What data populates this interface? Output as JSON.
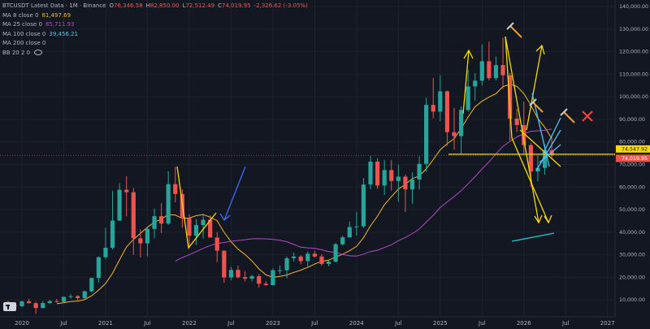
{
  "chart_data": {
    "type": "candlestick",
    "title": "BTCUSDT Latest Data · 1M · Binance",
    "ohlc_header": [
      {
        "label": "O",
        "text": "76,346.58"
      },
      {
        "label": "H",
        "text": "82,850.00"
      },
      {
        "label": "L",
        "text": "72,512.49"
      },
      {
        "label": "C",
        "text": "74,019.95"
      }
    ],
    "change": "-2,326.62 (-3.05%)",
    "indicators": [
      {
        "name": "MA 8 close 0",
        "value_label": "81,497.69",
        "color": "#f5b82e",
        "period": 8
      },
      {
        "name": "MA 25 close 0",
        "value_label": "85,711.93",
        "color": "#b04bc7",
        "period": 25
      },
      {
        "name": "MA 100 close 0",
        "value_label": "39,456.21",
        "color": "#4dd0e1",
        "period": 100
      },
      {
        "name": "MA 200 close 0",
        "color": "#d1d4dc",
        "period": 200
      },
      {
        "name": "BB 20 2 0",
        "color": "#d1d4dc"
      }
    ],
    "x": [
      "2019-11",
      "2019-12",
      "2020-01",
      "2020-02",
      "2020-03",
      "2020-04",
      "2020-05",
      "2020-06",
      "2020-07",
      "2020-08",
      "2020-09",
      "2020-10",
      "2020-11",
      "2020-12",
      "2021-01",
      "2021-02",
      "2021-03",
      "2021-04",
      "2021-05",
      "2021-06",
      "2021-07",
      "2021-08",
      "2021-09",
      "2021-10",
      "2021-11",
      "2021-12",
      "2022-01",
      "2022-02",
      "2022-03",
      "2022-04",
      "2022-05",
      "2022-06",
      "2022-07",
      "2022-08",
      "2022-09",
      "2022-10",
      "2022-11",
      "2022-12",
      "2023-01",
      "2023-02",
      "2023-03",
      "2023-04",
      "2023-05",
      "2023-06",
      "2023-07",
      "2023-08",
      "2023-09",
      "2023-10",
      "2023-11",
      "2023-12",
      "2024-01",
      "2024-02",
      "2024-03",
      "2024-04",
      "2024-05",
      "2024-06",
      "2024-07",
      "2024-08",
      "2024-09",
      "2024-10",
      "2024-11",
      "2024-12",
      "2025-01",
      "2025-02",
      "2025-03",
      "2025-04",
      "2025-05",
      "2025-06",
      "2025-07",
      "2025-08",
      "2025-09",
      "2025-10",
      "2025-11",
      "2025-12",
      "2026-01",
      "2026-02",
      "2026-03",
      "2026-04",
      "2026-05"
    ],
    "open": [
      9140,
      7540,
      7190,
      9350,
      8540,
      6410,
      8620,
      9450,
      9140,
      11350,
      11650,
      10780,
      13800,
      19700,
      28920,
      33110,
      45140,
      58800,
      57700,
      37300,
      35040,
      41460,
      47100,
      43820,
      61300,
      56950,
      46210,
      38470,
      43160,
      45510,
      37630,
      31800,
      19940,
      23290,
      20050,
      19420,
      20490,
      17160,
      16540,
      23130,
      23140,
      28460,
      29230,
      27210,
      30470,
      29230,
      25940,
      26960,
      34640,
      37720,
      42280,
      42580,
      61130,
      71280,
      60670,
      67530,
      62680,
      64620,
      58970,
      63330,
      70290,
      96410,
      93430,
      102430,
      84350,
      82550,
      94170,
      104590,
      107140,
      115760,
      108240,
      114050,
      109550,
      90360,
      87500,
      78600,
      66900,
      68500,
      76346.58
    ],
    "high": [
      9500,
      7750,
      9580,
      10500,
      9190,
      9460,
      10070,
      10380,
      11450,
      12470,
      12070,
      14100,
      19860,
      29300,
      41950,
      58350,
      61790,
      64850,
      59600,
      41300,
      42450,
      50500,
      52920,
      67000,
      69000,
      59050,
      47990,
      45800,
      48190,
      47440,
      40000,
      31900,
      24670,
      25200,
      22800,
      21080,
      21480,
      18390,
      23960,
      25250,
      29190,
      31000,
      29820,
      31430,
      31800,
      30230,
      27480,
      35200,
      38450,
      44700,
      48970,
      64000,
      73780,
      72800,
      71980,
      71950,
      70000,
      65600,
      66500,
      73600,
      99590,
      108350,
      109600,
      102750,
      95000,
      95760,
      111980,
      110530,
      123200,
      124470,
      117900,
      126200,
      110600,
      94600,
      97900,
      79500,
      74000,
      79000,
      82850
    ],
    "low": [
      6500,
      6430,
      6850,
      8450,
      3780,
      6150,
      8100,
      8830,
      8990,
      10520,
      9880,
      10370,
      13200,
      17570,
      28130,
      32300,
      44950,
      47000,
      30000,
      28800,
      29280,
      37330,
      39600,
      43280,
      53250,
      42000,
      32900,
      34300,
      37160,
      37700,
      26700,
      17600,
      18780,
      19520,
      18130,
      18190,
      15480,
      16260,
      16500,
      21350,
      19550,
      26940,
      25810,
      24800,
      28860,
      25170,
      24900,
      26560,
      34100,
      37620,
      38550,
      41880,
      59000,
      59190,
      56550,
      58400,
      53500,
      49000,
      52550,
      58900,
      66800,
      90500,
      89160,
      78260,
      76600,
      74500,
      93340,
      98200,
      105100,
      107300,
      107270,
      103500,
      80600,
      84400,
      74600,
      60000,
      62500,
      65500,
      72512.49
    ],
    "close": [
      7540,
      7190,
      9350,
      8540,
      6410,
      8620,
      9450,
      9140,
      11350,
      11650,
      10780,
      13800,
      19700,
      28920,
      33110,
      45140,
      58800,
      57700,
      37300,
      35040,
      41460,
      47100,
      43820,
      61300,
      56950,
      46210,
      38470,
      43160,
      45510,
      37630,
      31800,
      19940,
      23290,
      20050,
      19420,
      20490,
      17160,
      16540,
      23130,
      23140,
      28460,
      29230,
      27210,
      30470,
      29230,
      25940,
      26960,
      34640,
      37720,
      42280,
      42580,
      61130,
      71280,
      60670,
      67530,
      62680,
      64620,
      58970,
      63330,
      70290,
      96410,
      93430,
      102430,
      84350,
      82550,
      94170,
      104590,
      107140,
      115760,
      108240,
      114050,
      109550,
      90360,
      87500,
      78600,
      66900,
      68500,
      76346.58,
      74019.95
    ],
    "up_color": "#26a69a",
    "down_color": "#ef5350",
    "ylim": [
      2500,
      142900
    ],
    "yticks": [
      {
        "value": 10000,
        "label": "10,000.00"
      },
      {
        "value": 20000,
        "label": "20,000.00"
      },
      {
        "value": 30000,
        "label": "30,000.00"
      },
      {
        "value": 40000,
        "label": "40,000.00"
      },
      {
        "value": 50000,
        "label": "50,000.00"
      },
      {
        "value": 60000,
        "label": "60,000.00"
      },
      {
        "value": 70000,
        "label": "70,000.00"
      },
      {
        "value": 80000,
        "label": "80,000.00"
      },
      {
        "value": 90000,
        "label": "90,000.00"
      },
      {
        "value": 100000,
        "label": "100,000.00"
      },
      {
        "value": 110000,
        "label": "110,000.00"
      },
      {
        "value": 120000,
        "label": "120,000.00"
      },
      {
        "value": 130000,
        "label": "130,000.00"
      },
      {
        "value": 140000,
        "label": "140,000.00"
      }
    ],
    "xticks": [
      {
        "value": "2020-01",
        "label": "2020"
      },
      {
        "value": "2020-07",
        "label": "Jul"
      },
      {
        "value": "2021-01",
        "label": "2021"
      },
      {
        "value": "2021-07",
        "label": "Jul"
      },
      {
        "value": "2022-01",
        "label": "2022"
      },
      {
        "value": "2022-07",
        "label": "Jul"
      },
      {
        "value": "2023-01",
        "label": "2023"
      },
      {
        "value": "2023-07",
        "label": "Jul"
      },
      {
        "value": "2024-01",
        "label": "2024"
      },
      {
        "value": "2024-07",
        "label": "Jul"
      },
      {
        "value": "2025-01",
        "label": "2025"
      },
      {
        "value": "2025-07",
        "label": "Jul"
      },
      {
        "value": "2026-01",
        "label": "2026"
      },
      {
        "value": "2026-07",
        "label": "Jul"
      },
      {
        "value": "2027-01",
        "label": "2027"
      }
    ],
    "grid": true,
    "hline": {
      "value": 74547.92,
      "label": "74,547.92",
      "color": "#f5d90a"
    },
    "last_price": {
      "value": 74019.95,
      "label": "74,019.95"
    }
  }
}
